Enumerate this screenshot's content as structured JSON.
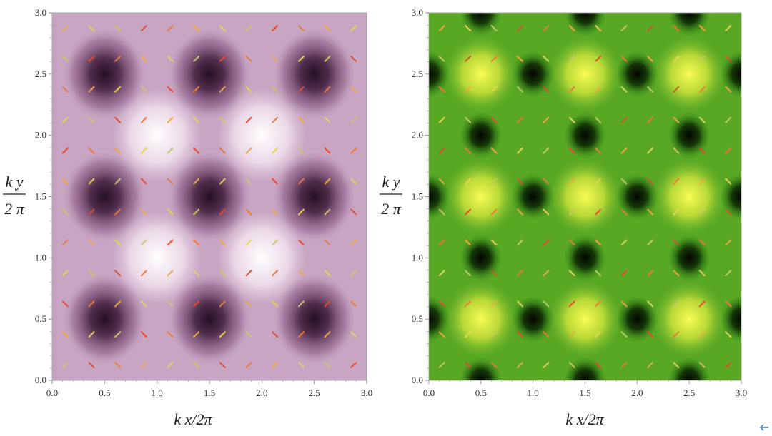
{
  "chart_data": [
    {
      "type": "heatmap",
      "title": "",
      "xlabel": "k x/2π",
      "ylabel_num": "k y",
      "ylabel_den": "2 π",
      "xlim": [
        0,
        3.0
      ],
      "ylim": [
        0,
        3.0
      ],
      "xticks": [
        "0.0",
        "0.5",
        "1.0",
        "1.5",
        "2.0",
        "2.5",
        "3.0"
      ],
      "yticks": [
        "0.0",
        "0.5",
        "1.0",
        "1.5",
        "2.0",
        "2.5",
        "3.0"
      ],
      "colormap": [
        "#fdf6fb",
        "#b489ad",
        "#2a1228"
      ],
      "dark_minima": [
        [
          0.5,
          0.5
        ],
        [
          1.5,
          0.5
        ],
        [
          2.5,
          0.5
        ],
        [
          0.5,
          1.5
        ],
        [
          1.5,
          1.5
        ],
        [
          2.5,
          1.5
        ],
        [
          0.5,
          2.5
        ],
        [
          1.5,
          2.5
        ],
        [
          2.5,
          2.5
        ]
      ],
      "bright_maxima": [
        [
          1.0,
          1.0
        ],
        [
          2.0,
          1.0
        ],
        [
          1.0,
          2.0
        ],
        [
          2.0,
          2.0
        ]
      ],
      "vector_field": "arrow overlay (yellow–orange–red)"
    },
    {
      "type": "heatmap",
      "title": "",
      "xlabel": "k x/2π",
      "ylabel_num": "k y",
      "ylabel_den": "2 π",
      "xlim": [
        0,
        3.0
      ],
      "ylim": [
        0,
        3.0
      ],
      "xticks": [
        "0.0",
        "0.5",
        "1.0",
        "1.5",
        "2.0",
        "2.5",
        "3.0"
      ],
      "yticks": [
        "0.0",
        "0.5",
        "1.0",
        "1.5",
        "2.0",
        "2.5",
        "3.0"
      ],
      "colormap": [
        "#050a02",
        "#2f8a16",
        "#f3f542"
      ],
      "dark_minima": [
        [
          0.5,
          0.0
        ],
        [
          1.5,
          0.0
        ],
        [
          2.5,
          0.0
        ],
        [
          0.0,
          0.5
        ],
        [
          1.0,
          0.5
        ],
        [
          2.0,
          0.5
        ],
        [
          3.0,
          0.5
        ],
        [
          0.5,
          1.0
        ],
        [
          1.5,
          1.0
        ],
        [
          2.5,
          1.0
        ],
        [
          0.0,
          1.5
        ],
        [
          1.0,
          1.5
        ],
        [
          2.0,
          1.5
        ],
        [
          3.0,
          1.5
        ],
        [
          0.5,
          2.0
        ],
        [
          1.5,
          2.0
        ],
        [
          2.5,
          2.0
        ],
        [
          0.0,
          2.5
        ],
        [
          1.0,
          2.5
        ],
        [
          2.0,
          2.5
        ],
        [
          3.0,
          2.5
        ],
        [
          0.5,
          3.0
        ],
        [
          1.5,
          3.0
        ],
        [
          2.5,
          3.0
        ]
      ],
      "bright_maxima": [
        [
          0.5,
          0.5
        ],
        [
          1.5,
          0.5
        ],
        [
          2.5,
          0.5
        ],
        [
          0.5,
          1.5
        ],
        [
          1.5,
          1.5
        ],
        [
          2.5,
          1.5
        ],
        [
          0.5,
          2.5
        ],
        [
          1.5,
          2.5
        ],
        [
          2.5,
          2.5
        ]
      ],
      "vector_field": "arrow overlay (yellow–orange–red)"
    }
  ]
}
